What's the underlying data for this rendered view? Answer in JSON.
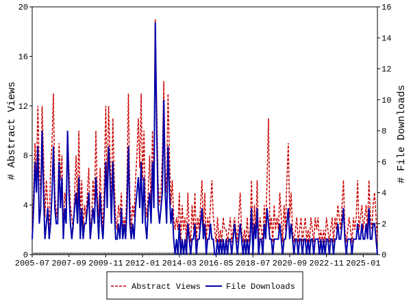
{
  "chart_data": {
    "type": "line",
    "x": [
      "2005-07",
      "2005-08",
      "2005-09",
      "2005-10",
      "2005-11",
      "2005-12",
      "2006-01",
      "2006-02",
      "2006-03",
      "2006-04",
      "2006-05",
      "2006-06",
      "2006-07",
      "2006-08",
      "2006-09",
      "2006-10",
      "2006-11",
      "2006-12",
      "2007-01",
      "2007-02",
      "2007-03",
      "2007-04",
      "2007-05",
      "2007-06",
      "2007-07",
      "2007-08",
      "2007-09",
      "2007-10",
      "2007-11",
      "2007-12",
      "2008-01",
      "2008-02",
      "2008-03",
      "2008-04",
      "2008-05",
      "2008-06",
      "2008-07",
      "2008-08",
      "2008-09",
      "2008-10",
      "2008-11",
      "2008-12",
      "2009-01",
      "2009-02",
      "2009-03",
      "2009-04",
      "2009-05",
      "2009-06",
      "2009-07",
      "2009-08",
      "2009-09",
      "2009-10",
      "2009-11",
      "2009-12",
      "2010-01",
      "2010-02",
      "2010-03",
      "2010-04",
      "2010-05",
      "2010-06",
      "2010-07",
      "2010-08",
      "2010-09",
      "2010-10",
      "2010-11",
      "2010-12",
      "2011-01",
      "2011-02",
      "2011-03",
      "2011-04",
      "2011-05",
      "2011-06",
      "2011-07",
      "2011-08",
      "2011-09",
      "2011-10",
      "2011-11",
      "2011-12",
      "2012-01",
      "2012-02",
      "2012-03",
      "2012-04",
      "2012-05",
      "2012-06",
      "2012-07",
      "2012-08",
      "2012-09",
      "2012-10",
      "2012-11",
      "2012-12",
      "2013-01",
      "2013-02",
      "2013-03",
      "2013-04",
      "2013-05",
      "2013-06",
      "2013-07",
      "2013-08",
      "2013-09",
      "2013-10",
      "2013-11",
      "2013-12",
      "2014-01",
      "2014-02",
      "2014-03",
      "2014-04",
      "2014-05",
      "2014-06",
      "2014-07",
      "2014-08",
      "2014-09",
      "2014-10",
      "2014-11",
      "2014-12",
      "2015-01",
      "2015-02",
      "2015-03",
      "2015-04",
      "2015-05",
      "2015-06",
      "2015-07",
      "2015-08",
      "2015-09",
      "2015-10",
      "2015-11",
      "2015-12",
      "2016-01",
      "2016-02",
      "2016-03",
      "2016-04",
      "2016-05",
      "2016-06",
      "2016-07",
      "2016-08",
      "2016-09",
      "2016-10",
      "2016-11",
      "2016-12",
      "2017-01",
      "2017-02",
      "2017-03",
      "2017-04",
      "2017-05",
      "2017-06",
      "2017-07",
      "2017-08",
      "2017-09",
      "2017-10",
      "2017-11",
      "2017-12",
      "2018-01",
      "2018-02",
      "2018-03",
      "2018-04",
      "2018-05",
      "2018-06",
      "2018-07",
      "2018-08",
      "2018-09",
      "2018-10",
      "2018-11",
      "2018-12",
      "2019-01",
      "2019-02",
      "2019-03",
      "2019-04",
      "2019-05",
      "2019-06",
      "2019-07",
      "2019-08",
      "2019-09",
      "2019-10",
      "2019-11",
      "2019-12",
      "2020-01",
      "2020-02",
      "2020-03",
      "2020-04",
      "2020-05",
      "2020-06",
      "2020-07",
      "2020-08",
      "2020-09",
      "2020-10",
      "2020-11",
      "2020-12",
      "2021-01",
      "2021-02",
      "2021-03",
      "2021-04",
      "2021-05",
      "2021-06",
      "2021-07",
      "2021-08",
      "2021-09",
      "2021-10",
      "2021-11",
      "2021-12",
      "2022-01",
      "2022-02",
      "2022-03",
      "2022-04",
      "2022-05",
      "2022-06",
      "2022-07",
      "2022-08",
      "2022-09",
      "2022-10",
      "2022-11",
      "2022-12",
      "2023-01",
      "2023-02",
      "2023-03",
      "2023-04",
      "2023-05",
      "2023-06",
      "2023-07",
      "2023-08",
      "2023-09",
      "2023-10",
      "2023-11",
      "2023-12",
      "2024-01",
      "2024-02",
      "2024-03",
      "2024-04",
      "2024-05",
      "2024-06",
      "2024-07",
      "2024-08",
      "2024-09",
      "2024-10",
      "2024-11",
      "2024-12",
      "2025-01",
      "2025-02",
      "2025-03",
      "2025-04",
      "2025-05",
      "2025-06",
      "2025-07",
      "2025-08",
      "2025-09",
      "2025-10",
      "2025-11"
    ],
    "xticks": [
      "2005-07",
      "2007-09",
      "2009-11",
      "2012-01",
      "2014-03",
      "2016-05",
      "2018-07",
      "2020-09",
      "2022-11",
      "2025-01"
    ],
    "ylabel": "# Abstract Views",
    "y2label": "# File Downloads",
    "ylim": [
      0,
      20
    ],
    "yticks": [
      0,
      4,
      8,
      12,
      16,
      20
    ],
    "y2lim": [
      0,
      16
    ],
    "y2ticks": [
      0,
      2,
      4,
      6,
      8,
      10,
      12,
      14,
      16
    ],
    "legend": "bottom",
    "series": [
      {
        "name": "Abstract Views",
        "color": "#cc0000",
        "dashed": true,
        "values": [
          2,
          5,
          9,
          6,
          12,
          7,
          5,
          12,
          8,
          3,
          6,
          4,
          2,
          7,
          9,
          13,
          5,
          3,
          4,
          9,
          6,
          8,
          2,
          5,
          4,
          10,
          7,
          4,
          3,
          2,
          5,
          8,
          4,
          10,
          3,
          6,
          2,
          4,
          3,
          5,
          7,
          2,
          3,
          6,
          4,
          10,
          5,
          3,
          7,
          4,
          2,
          6,
          12,
          5,
          12,
          8,
          4,
          11,
          6,
          3,
          2,
          4,
          3,
          5,
          2,
          3,
          2,
          6,
          13,
          5,
          2,
          4,
          3,
          6,
          8,
          11,
          7,
          13,
          6,
          10,
          4,
          3,
          5,
          8,
          4,
          10,
          6,
          19,
          12,
          6,
          4,
          5,
          8,
          14,
          7,
          5,
          13,
          8,
          4,
          6,
          3,
          2,
          3,
          2,
          5,
          1,
          4,
          2,
          3,
          1,
          5,
          2,
          1,
          4,
          2,
          5,
          1,
          3,
          2,
          4,
          6,
          2,
          5,
          1,
          3,
          2,
          4,
          6,
          3,
          2,
          1,
          3,
          1,
          2,
          1,
          3,
          2,
          2,
          1,
          2,
          3,
          1,
          2,
          3,
          2,
          1,
          3,
          5,
          2,
          1,
          2,
          1,
          3,
          1,
          2,
          6,
          1,
          4,
          2,
          6,
          1,
          3,
          2,
          1,
          4,
          2,
          6,
          11,
          2,
          3,
          1,
          4,
          2,
          3,
          2,
          5,
          3,
          1,
          4,
          2,
          6,
          9,
          3,
          5,
          2,
          1,
          2,
          3,
          1,
          2,
          3,
          1,
          2,
          3,
          1,
          2,
          1,
          3,
          2,
          1,
          3,
          2,
          3,
          1,
          2,
          1,
          2,
          1,
          3,
          2,
          1,
          2,
          3,
          1,
          3,
          2,
          4,
          3,
          2,
          4,
          6,
          2,
          1,
          2,
          3,
          2,
          1,
          3,
          2,
          3,
          6,
          2,
          3,
          4,
          2,
          3,
          4,
          2,
          6,
          3,
          2,
          4,
          5,
          3,
          1
        ]
      },
      {
        "name": "File Downloads",
        "color": "#0000aa",
        "axis": "y2",
        "dashed": false,
        "values": [
          1,
          3,
          6,
          4,
          7,
          2,
          3,
          8,
          4,
          1,
          2,
          3,
          1,
          2,
          4,
          7,
          3,
          2,
          2,
          6,
          3,
          5,
          1,
          3,
          2,
          8,
          4,
          2,
          1,
          2,
          3,
          4,
          2,
          5,
          1,
          3,
          1,
          2,
          2,
          3,
          4,
          1,
          2,
          3,
          2,
          5,
          3,
          1,
          4,
          2,
          1,
          3,
          6,
          3,
          7,
          5,
          2,
          6,
          3,
          1,
          1,
          2,
          1,
          3,
          1,
          2,
          1,
          3,
          7,
          2,
          1,
          2,
          1,
          3,
          4,
          5,
          3,
          6,
          2,
          5,
          2,
          1,
          3,
          4,
          2,
          6,
          3,
          15,
          8,
          3,
          2,
          3,
          4,
          10,
          4,
          2,
          7,
          4,
          2,
          3,
          1,
          0,
          1,
          0,
          2,
          0,
          1,
          0,
          1,
          0,
          2,
          1,
          0,
          1,
          1,
          2,
          0,
          1,
          1,
          2,
          3,
          1,
          2,
          0,
          1,
          1,
          2,
          1,
          1,
          0,
          0,
          1,
          0,
          1,
          0,
          1,
          0,
          1,
          0,
          1,
          1,
          0,
          1,
          2,
          1,
          0,
          1,
          2,
          1,
          0,
          1,
          0,
          1,
          0,
          1,
          3,
          0,
          2,
          1,
          3,
          0,
          1,
          1,
          0,
          2,
          1,
          3,
          2,
          1,
          1,
          0,
          1,
          1,
          1,
          1,
          2,
          1,
          0,
          1,
          1,
          2,
          3,
          1,
          2,
          1,
          0,
          1,
          1,
          0,
          1,
          1,
          0,
          1,
          1,
          0,
          1,
          0,
          1,
          1,
          0,
          1,
          1,
          1,
          0,
          1,
          0,
          1,
          0,
          1,
          1,
          0,
          1,
          1,
          0,
          1,
          1,
          2,
          1,
          1,
          2,
          3,
          1,
          0,
          1,
          1,
          1,
          0,
          1,
          1,
          1,
          2,
          1,
          1,
          2,
          1,
          1,
          2,
          1,
          3,
          1,
          1,
          2,
          2,
          1,
          0
        ]
      }
    ]
  }
}
